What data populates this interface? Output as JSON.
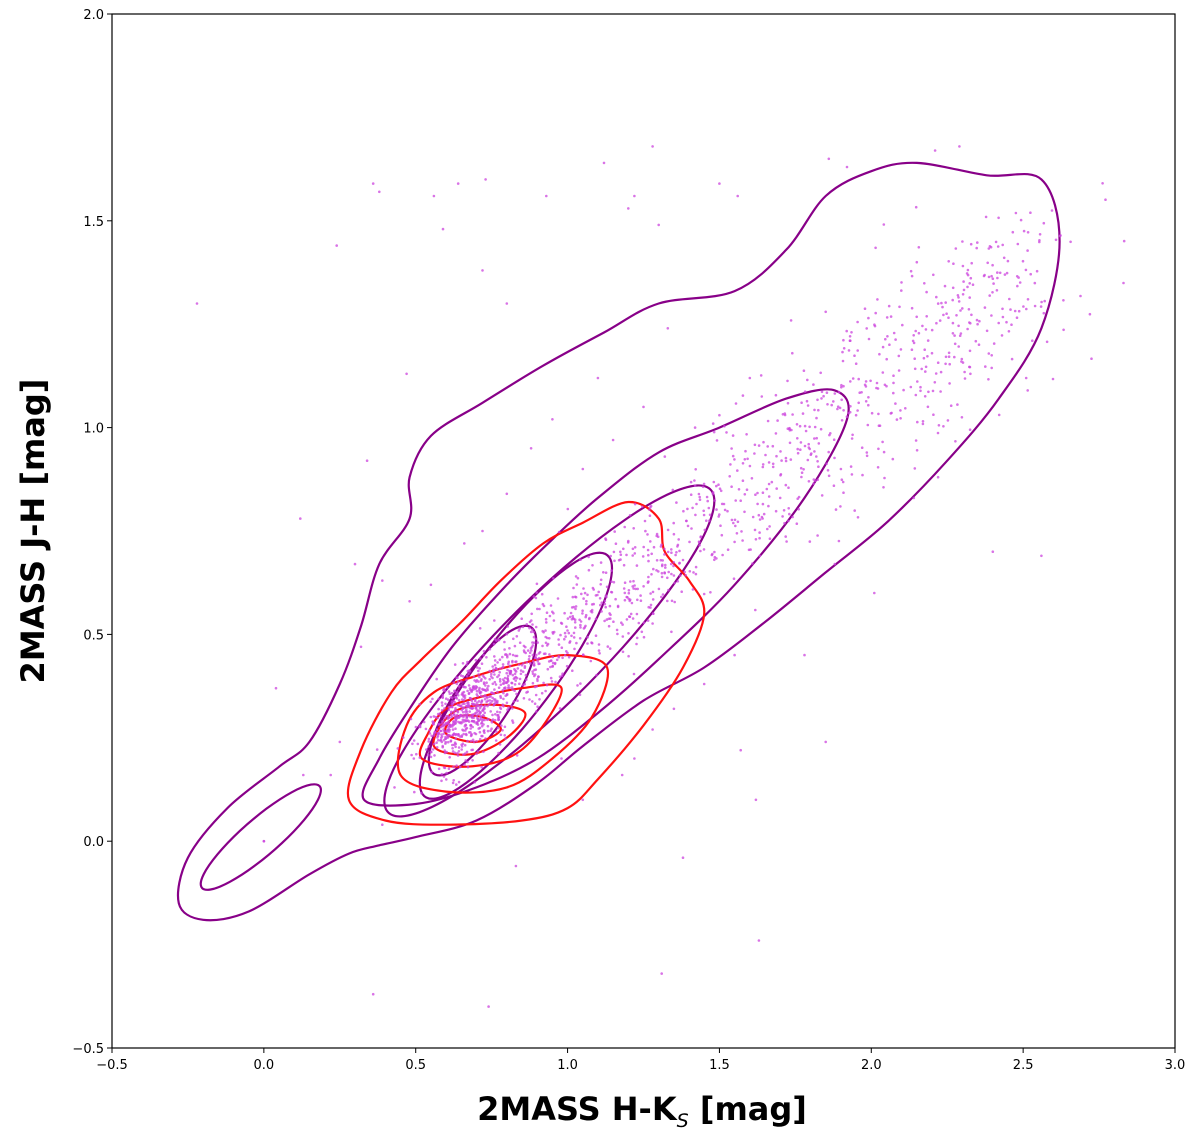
{
  "chart_data": {
    "type": "scatter",
    "title": "",
    "xlabel": "2MASS H-K",
    "xlabel_sub": "S",
    "xlabel_unit": " [mag]",
    "ylabel": "2MASS J-H [mag]",
    "xlim": [
      -0.5,
      3.0
    ],
    "ylim": [
      -0.5,
      2.0
    ],
    "xticks": [
      -0.5,
      0.0,
      0.5,
      1.0,
      1.5,
      2.0,
      2.5,
      3.0
    ],
    "xtick_labels": [
      "−0.5",
      "0.0",
      "0.5",
      "1.0",
      "1.5",
      "2.0",
      "2.5",
      "3.0"
    ],
    "yticks": [
      -0.5,
      0.0,
      0.5,
      1.0,
      1.5,
      2.0
    ],
    "ytick_labels": [
      "−0.5",
      "0.0",
      "0.5",
      "1.0",
      "1.5",
      "2.0"
    ],
    "grid": false,
    "legend": "none",
    "colors": {
      "points": "#cc44dd",
      "purple_contours": "#880088",
      "red_contours": "#ff1111"
    },
    "scatter_sample": [
      [
        -0.22,
        1.3
      ],
      [
        0.04,
        0.37
      ],
      [
        0.12,
        0.78
      ],
      [
        0.24,
        1.44
      ],
      [
        0.38,
        1.57
      ],
      [
        0.36,
        1.59
      ],
      [
        0.47,
        1.13
      ],
      [
        0.56,
        1.56
      ],
      [
        0.59,
        1.48
      ],
      [
        0.64,
        1.59
      ],
      [
        0.72,
        1.38
      ],
      [
        0.73,
        1.6
      ],
      [
        0.8,
        1.3
      ],
      [
        0.93,
        1.56
      ],
      [
        1.12,
        1.64
      ],
      [
        1.2,
        1.53
      ],
      [
        1.22,
        1.56
      ],
      [
        1.28,
        1.68
      ],
      [
        1.3,
        1.49
      ],
      [
        1.33,
        1.24
      ],
      [
        1.5,
        1.59
      ],
      [
        1.56,
        1.56
      ],
      [
        1.86,
        1.65
      ],
      [
        1.92,
        1.63
      ],
      [
        2.21,
        1.67
      ],
      [
        2.29,
        1.68
      ],
      [
        2.44,
        1.37
      ],
      [
        2.51,
        1.12
      ],
      [
        2.53,
        1.21
      ],
      [
        2.56,
        0.69
      ],
      [
        2.4,
        0.7
      ],
      [
        2.22,
        0.88
      ],
      [
        2.14,
        0.83
      ],
      [
        1.88,
        0.67
      ],
      [
        2.01,
        0.6
      ],
      [
        1.85,
        0.24
      ],
      [
        1.78,
        0.45
      ],
      [
        1.57,
        0.22
      ],
      [
        1.62,
        0.1
      ],
      [
        1.63,
        -0.24
      ],
      [
        1.31,
        -0.32
      ],
      [
        1.38,
        -0.04
      ],
      [
        0.74,
        -0.4
      ],
      [
        0.36,
        -0.37
      ],
      [
        0.83,
        -0.06
      ],
      [
        0.13,
        0.16
      ],
      [
        0.0,
        0.0
      ],
      [
        0.0,
        0.0
      ],
      [
        0.22,
        0.16
      ],
      [
        0.25,
        0.24
      ],
      [
        0.39,
        0.04
      ],
      [
        0.43,
        0.13
      ],
      [
        0.48,
        0.58
      ],
      [
        0.34,
        0.92
      ],
      [
        0.39,
        0.63
      ],
      [
        0.55,
        0.62
      ],
      [
        0.32,
        0.47
      ],
      [
        0.3,
        0.67
      ],
      [
        1.38,
        0.68
      ],
      [
        1.42,
        0.86
      ],
      [
        1.62,
        0.73
      ],
      [
        1.7,
        0.83
      ],
      [
        1.9,
        0.9
      ],
      [
        1.95,
        1.03
      ],
      [
        2.05,
        1.1
      ],
      [
        2.2,
        1.18
      ],
      [
        2.35,
        1.25
      ],
      [
        2.4,
        1.36
      ],
      [
        2.3,
        1.45
      ],
      [
        2.15,
        1.4
      ],
      [
        2.02,
        1.31
      ],
      [
        1.85,
        1.28
      ],
      [
        1.74,
        1.18
      ],
      [
        1.6,
        1.12
      ],
      [
        1.5,
        1.03
      ],
      [
        1.42,
        1.0
      ],
      [
        1.32,
        0.93
      ],
      [
        1.25,
        1.05
      ],
      [
        1.15,
        0.97
      ],
      [
        1.05,
        0.9
      ],
      [
        1.1,
        1.12
      ],
      [
        0.95,
        1.02
      ],
      [
        0.88,
        0.95
      ],
      [
        0.8,
        0.84
      ],
      [
        0.72,
        0.75
      ],
      [
        0.66,
        0.72
      ],
      [
        1.55,
        0.45
      ],
      [
        1.45,
        0.38
      ],
      [
        1.35,
        0.32
      ],
      [
        1.28,
        0.27
      ],
      [
        1.22,
        0.2
      ],
      [
        1.18,
        0.16
      ],
      [
        1.05,
        0.1
      ],
      [
        0.98,
        0.2
      ]
    ]
  }
}
